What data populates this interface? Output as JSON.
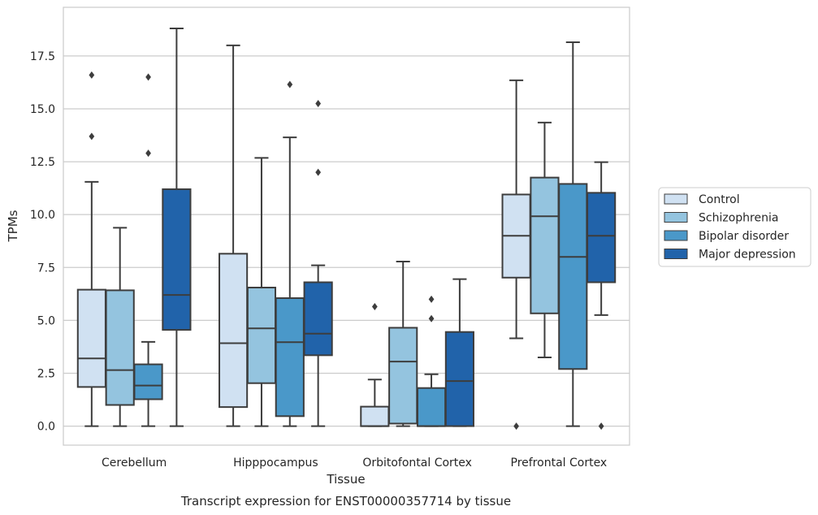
{
  "caption": "Transcript expression for ENST00000357714 by tissue",
  "chart_data": {
    "type": "box",
    "title": "",
    "xlabel": "Tissue",
    "ylabel": "TPMs",
    "ylim": [
      -0.9,
      19.8
    ],
    "yticks": [
      0.0,
      2.5,
      5.0,
      7.5,
      10.0,
      12.5,
      15.0,
      17.5
    ],
    "ytick_labels": [
      "0.0",
      "2.5",
      "5.0",
      "7.5",
      "10.0",
      "12.5",
      "15.0",
      "17.5"
    ],
    "grid": "horizontal",
    "legend_position": "right",
    "categories": [
      "Cerebellum",
      "Hipppocampus",
      "Orbitofontal Cortex",
      "Prefrontal Cortex"
    ],
    "series": [
      {
        "name": "Control",
        "color": "#d0e1f2",
        "boxes": [
          {
            "whislo": 0.0,
            "q1": 1.85,
            "med": 3.2,
            "q3": 6.45,
            "whishi": 11.55,
            "fliers": [
              13.7,
              16.6
            ]
          },
          {
            "whislo": 0.0,
            "q1": 0.9,
            "med": 3.92,
            "q3": 8.15,
            "whishi": 18.0,
            "fliers": []
          },
          {
            "whislo": 0.0,
            "q1": 0.0,
            "med": 0.0,
            "q3": 0.92,
            "whishi": 2.2,
            "fliers": [
              5.65
            ]
          },
          {
            "whislo": 4.15,
            "q1": 7.02,
            "med": 9.0,
            "q3": 10.95,
            "whishi": 16.35,
            "fliers": [
              0.0
            ]
          }
        ]
      },
      {
        "name": "Schizophrenia",
        "color": "#94c4df",
        "boxes": [
          {
            "whislo": 0.0,
            "q1": 1.0,
            "med": 2.65,
            "q3": 6.42,
            "whishi": 9.38,
            "fliers": []
          },
          {
            "whislo": 0.0,
            "q1": 2.03,
            "med": 4.62,
            "q3": 6.55,
            "whishi": 12.68,
            "fliers": []
          },
          {
            "whislo": 0.0,
            "q1": 0.12,
            "med": 3.05,
            "q3": 4.65,
            "whishi": 7.78,
            "fliers": []
          },
          {
            "whislo": 3.25,
            "q1": 5.33,
            "med": 9.92,
            "q3": 11.75,
            "whishi": 14.35,
            "fliers": []
          }
        ]
      },
      {
        "name": "Bipolar disorder",
        "color": "#4a98c9",
        "boxes": [
          {
            "whislo": 0.0,
            "q1": 1.27,
            "med": 1.92,
            "q3": 2.92,
            "whishi": 3.98,
            "fliers": [
              12.9,
              16.5
            ]
          },
          {
            "whislo": 0.0,
            "q1": 0.47,
            "med": 3.97,
            "q3": 6.05,
            "whishi": 13.65,
            "fliers": [
              16.15
            ]
          },
          {
            "whislo": 0.0,
            "q1": 0.0,
            "med": 0.0,
            "q3": 1.8,
            "whishi": 2.45,
            "fliers": [
              5.08,
              6.0
            ]
          },
          {
            "whislo": 0.0,
            "q1": 2.7,
            "med": 8.0,
            "q3": 11.45,
            "whishi": 18.15,
            "fliers": []
          }
        ]
      },
      {
        "name": "Major depression",
        "color": "#2163aa",
        "boxes": [
          {
            "whislo": 0.0,
            "q1": 4.55,
            "med": 6.2,
            "q3": 11.2,
            "whishi": 18.8,
            "fliers": []
          },
          {
            "whislo": 0.0,
            "q1": 3.35,
            "med": 4.37,
            "q3": 6.8,
            "whishi": 7.6,
            "fliers": [
              12.0,
              15.25
            ]
          },
          {
            "whislo": 0.0,
            "q1": 0.0,
            "med": 2.13,
            "q3": 4.45,
            "whishi": 6.95,
            "fliers": []
          },
          {
            "whislo": 5.25,
            "q1": 6.8,
            "med": 9.0,
            "q3": 11.03,
            "whishi": 12.48,
            "fliers": [
              0.0
            ]
          }
        ]
      }
    ]
  }
}
